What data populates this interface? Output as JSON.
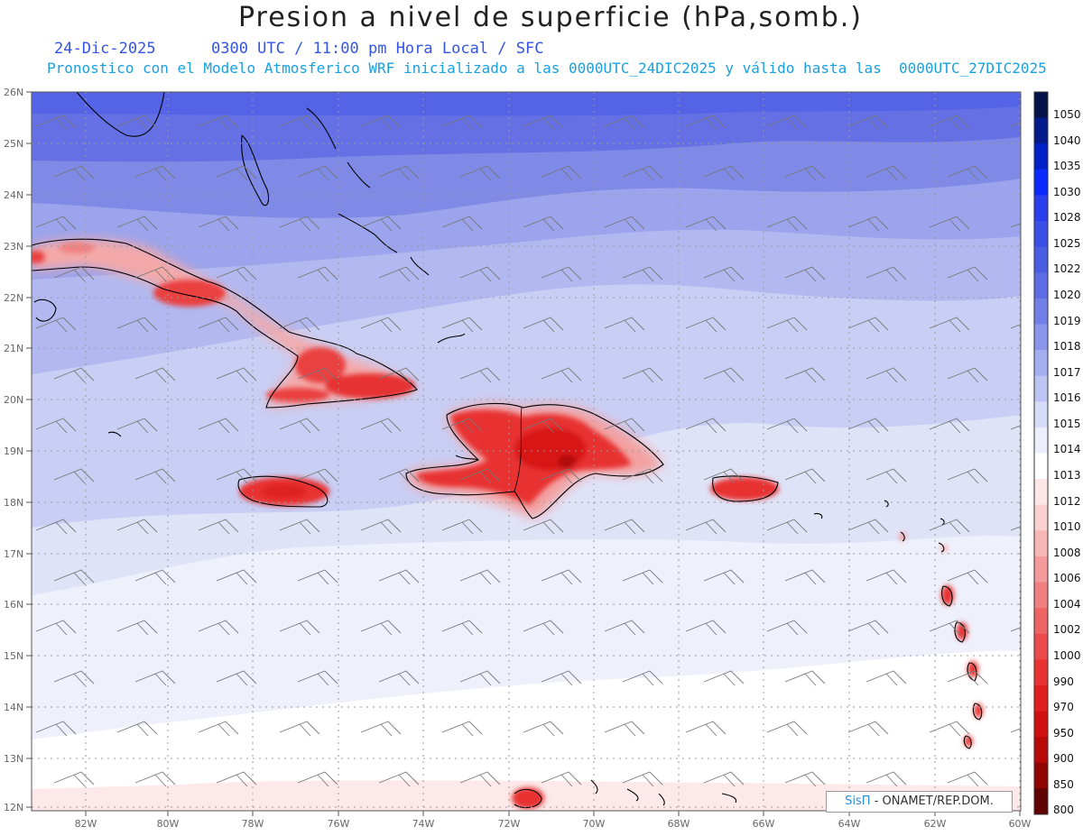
{
  "header": {
    "title": "Presion a nivel de superficie (hPa,somb.)",
    "subtitle_line1": "24-Dic-2025      0300 UTC / 11:00 pm Hora Local / SFC",
    "subtitle_line2": "Pronostico con el Modelo Atmosferico WRF inicializado a las 0000UTC_24DIC2025 y válido hasta las  0000UTC_27DIC2025"
  },
  "map": {
    "lat_labels": [
      "26N",
      "25N",
      "24N",
      "23N",
      "22N",
      "21N",
      "20N",
      "19N",
      "18N",
      "17N",
      "16N",
      "15N",
      "14N",
      "13N",
      "12N"
    ],
    "lon_labels": [
      "82W",
      "80W",
      "78W",
      "76W",
      "74W",
      "72W",
      "70W",
      "68W",
      "66W",
      "64W",
      "62W",
      "60W"
    ]
  },
  "colorbar": {
    "levels": [
      "1050",
      "1040",
      "1035",
      "1030",
      "1028",
      "1025",
      "1022",
      "1020",
      "1019",
      "1018",
      "1017",
      "1016",
      "1015",
      "1014",
      "1013",
      "1012",
      "1010",
      "1008",
      "1006",
      "1004",
      "1002",
      "1000",
      "990",
      "970",
      "950",
      "900",
      "850",
      "800"
    ],
    "colors": [
      "#04124a",
      "#021a8c",
      "#0022c8",
      "#0a2aff",
      "#2a3ef0",
      "#3a4ee8",
      "#4a5ce4",
      "#5c6ce4",
      "#7080e8",
      "#8a96ec",
      "#a2aef0",
      "#bcc4f4",
      "#d6dcf8",
      "#eceffb",
      "#ffffff",
      "#fde6e6",
      "#fbd0d0",
      "#f8b6b6",
      "#f59a9a",
      "#f27f7f",
      "#ef6565",
      "#ec4a4a",
      "#e83232",
      "#e01e1e",
      "#d01010",
      "#b80808",
      "#900404",
      "#600202"
    ]
  },
  "credit": {
    "sis": "SisΠ",
    "text": " - ONAMET/REP.DOM."
  }
}
